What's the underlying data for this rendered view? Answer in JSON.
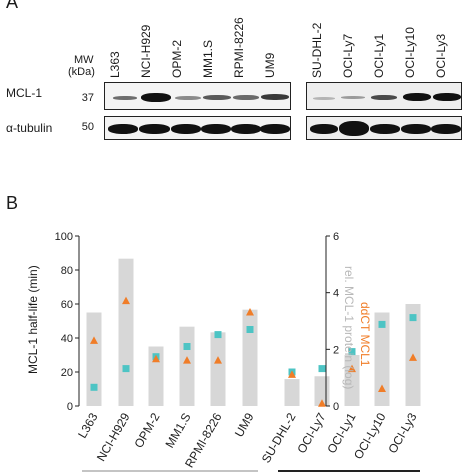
{
  "panel_a": {
    "letter": "A",
    "mw_title": "MW",
    "mw_unit": "(kDa)",
    "mw_mcl1": "37",
    "mw_tubulin": "50",
    "row_mcl1": "MCL-1",
    "row_tubulin": "α-tubulin",
    "lanes_group1": [
      "L363",
      "NCI-H929",
      "OPM-2",
      "MM1.S",
      "RPMI-8226",
      "UM9"
    ],
    "lanes_group2": [
      "SU-DHL-2",
      "OCI-Ly7",
      "OCI-Ly1",
      "OCI-Ly10",
      "OCI-Ly3"
    ]
  },
  "panel_b": {
    "letter": "B",
    "left_axis_label": "MCL-1 half-life (min)",
    "right_axis_label_1": "rel. MCL-1 protein (log)",
    "right_axis_label_2": "ddCT MCL1",
    "left_ticks": [
      "0",
      "20",
      "40",
      "60",
      "80",
      "100"
    ],
    "right_ticks": [
      "0",
      "2",
      "4",
      "6"
    ]
  },
  "colors": {
    "half_life": "#4dc4c4",
    "ddct": "#f07d28",
    "protein_bar": "#d7d7d7",
    "axis": "#222222"
  },
  "chart_data": {
    "type": "bar",
    "categories": [
      "L363",
      "NCI-H929",
      "OPM-2",
      "MM1.S",
      "RPMI-8226",
      "UM9",
      "SU-DHL-2",
      "OCI-Ly7",
      "OCI-Ly1",
      "OCI-Ly10",
      "OCI-Ly3"
    ],
    "left_axis": {
      "label": "MCL-1 half-life (min)",
      "range": [
        0,
        100
      ]
    },
    "right_axis": {
      "label": "rel. MCL-1 protein (log)",
      "range": [
        0,
        6
      ]
    },
    "series": [
      {
        "name": "rel. MCL-1 protein (log)",
        "kind": "bar",
        "axis": "right",
        "color": "#d7d7d7",
        "values": [
          3.3,
          5.2,
          2.1,
          2.8,
          2.6,
          3.4,
          0.95,
          1.05,
          1.8,
          3.3,
          3.6
        ]
      },
      {
        "name": "MCL-1 half-life (min)",
        "kind": "square",
        "axis": "left",
        "color": "#4dc4c4",
        "values": [
          11,
          22,
          29,
          35,
          42,
          45,
          20,
          22,
          32,
          48,
          52
        ]
      },
      {
        "name": "ddCT MCL1",
        "kind": "triangle",
        "axis": "right",
        "color": "#f07d28",
        "values": [
          2.3,
          3.7,
          1.65,
          1.6,
          1.6,
          3.3,
          1.1,
          0.08,
          1.3,
          0.6,
          1.7
        ]
      }
    ]
  }
}
